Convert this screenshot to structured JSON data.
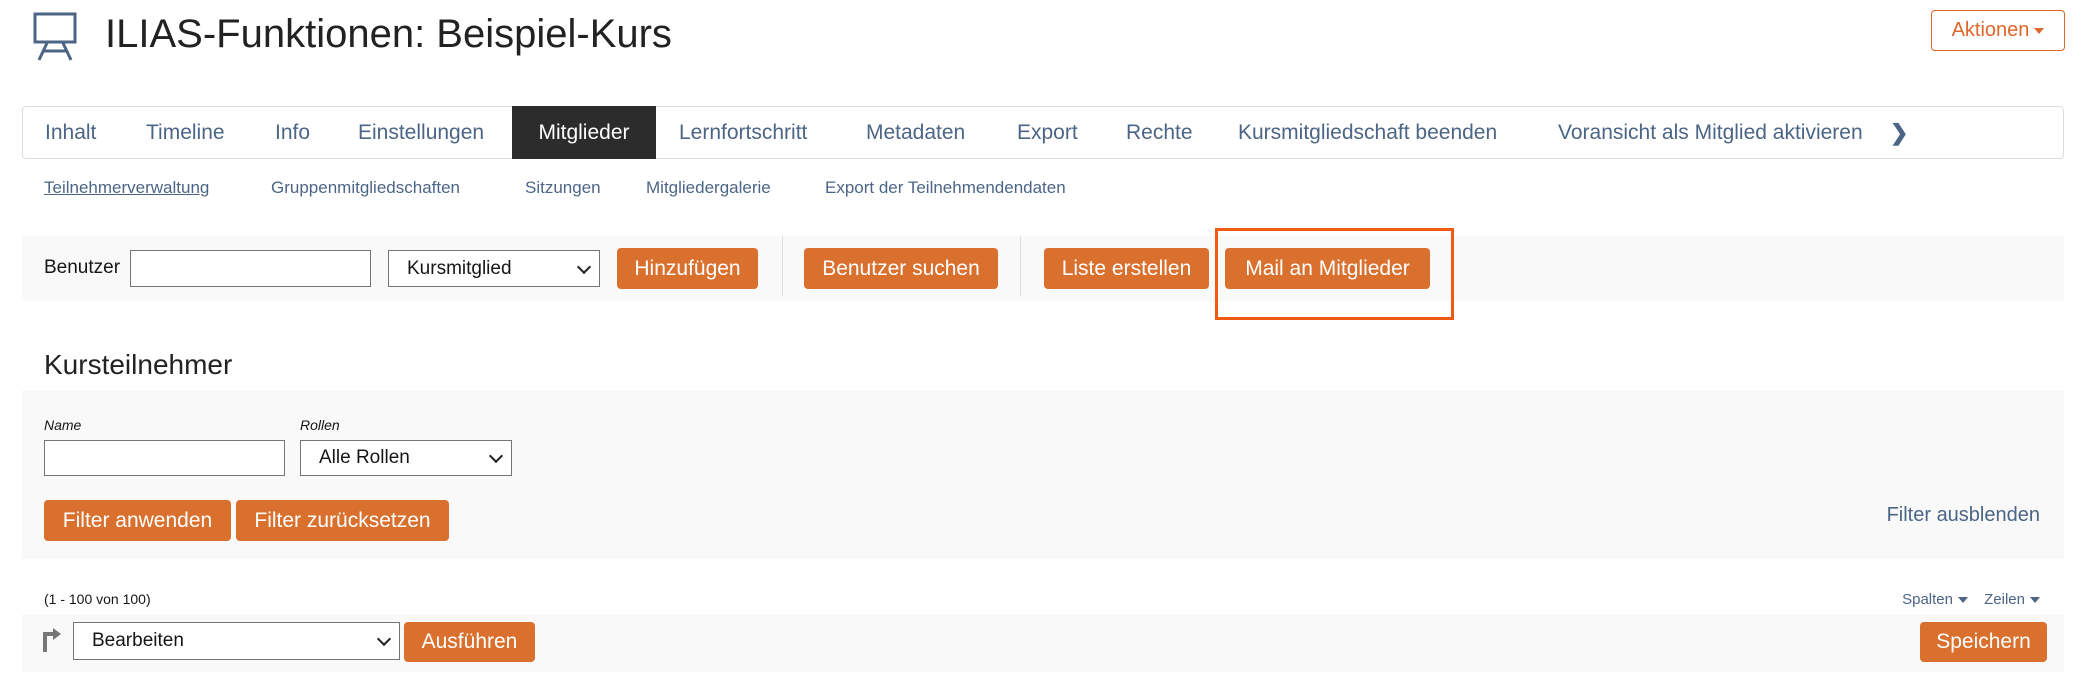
{
  "header": {
    "title": "ILIAS-Funktionen: Beispiel-Kurs",
    "icon": "course-easel-icon",
    "actions_label": "Aktionen"
  },
  "tabs": [
    {
      "label": "Inhalt"
    },
    {
      "label": "Timeline"
    },
    {
      "label": "Info"
    },
    {
      "label": "Einstellungen"
    },
    {
      "label": "Mitglieder",
      "active": true
    },
    {
      "label": "Lernfortschritt"
    },
    {
      "label": "Metadaten"
    },
    {
      "label": "Export"
    },
    {
      "label": "Rechte"
    },
    {
      "label": "Kursmitgliedschaft beenden"
    },
    {
      "label": "Voransicht als Mitglied aktivieren"
    }
  ],
  "subtabs": [
    {
      "label": "Teilnehmerverwaltung",
      "active": true
    },
    {
      "label": "Gruppenmitgliedschaften"
    },
    {
      "label": "Sitzungen"
    },
    {
      "label": "Mitgliedergalerie"
    },
    {
      "label": "Export der Teilnehmendendaten"
    }
  ],
  "toolbar": {
    "user_label": "Benutzer",
    "user_value": "",
    "role_selected": "Kursmitglied",
    "add": "Hinzufügen",
    "search_users": "Benutzer suchen",
    "create_list": "Liste erstellen",
    "mail_members": "Mail an Mitglieder"
  },
  "section": {
    "title": "Kursteilnehmer"
  },
  "filter": {
    "name_label": "Name",
    "name_value": "",
    "roles_label": "Rollen",
    "roles_selected": "Alle Rollen",
    "apply": "Filter anwenden",
    "reset": "Filter zurücksetzen",
    "hide": "Filter ausblenden"
  },
  "table": {
    "count": "(1 - 100 von 100)",
    "columns": "Spalten",
    "rows": "Zeilen",
    "action_selected": "Bearbeiten",
    "execute": "Ausführen",
    "save": "Speichern"
  },
  "colors": {
    "accent": "#d9702e",
    "highlight": "#f05a12",
    "link": "#4c6586",
    "active_tab": "#2c2c2c"
  }
}
